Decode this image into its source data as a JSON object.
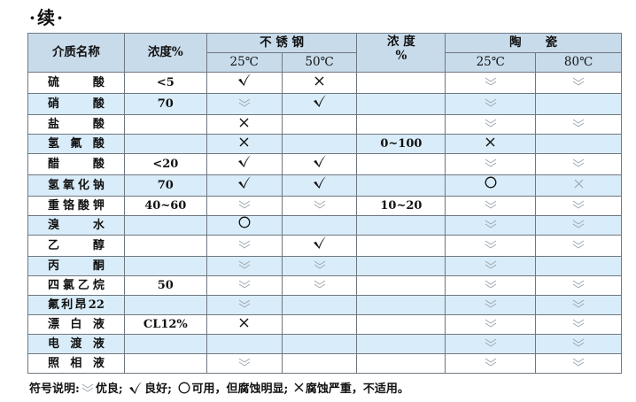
{
  "title": "·续·",
  "header": {
    "medium": "介质名称",
    "concentration": "浓度%",
    "steel": "不 锈 钢",
    "steel_25": "25℃",
    "steel_50": "50℃",
    "conc2_line1": "浓 度",
    "conc2_line2": "%",
    "ceramic": "陶　　瓷",
    "ceramic_25": "25℃",
    "ceramic_80": "80℃"
  },
  "rows": [
    {
      "name": "硫 酸",
      "conc": "<5",
      "s25": "good",
      "s50": "poor",
      "conc2": "",
      "c25": "excellent",
      "c80": "excellent"
    },
    {
      "name": "硝 酸",
      "conc": "70",
      "s25": "excellent",
      "s50": "good",
      "conc2": "",
      "c25": "excellent",
      "c80": ""
    },
    {
      "name": "盐 酸",
      "conc": "",
      "s25": "poor",
      "s50": "",
      "conc2": "",
      "c25": "excellent",
      "c80": "excellent"
    },
    {
      "name": "氢 氟 酸",
      "conc": "",
      "s25": "poor",
      "s50": "",
      "conc2": "0~100",
      "c25": "poor",
      "c80": ""
    },
    {
      "name": "醋 酸",
      "conc": "<20",
      "s25": "good",
      "s50": "good",
      "conc2": "",
      "c25": "excellent",
      "c80": "excellent"
    },
    {
      "name": "氢氧化钠",
      "conc": "70",
      "s25": "good",
      "s50": "good",
      "conc2": "",
      "c25": "fair",
      "c80": "poor-light"
    },
    {
      "name": "重铬酸钾",
      "conc": "40~60",
      "s25": "excellent",
      "s50": "excellent",
      "conc2": "10~20",
      "c25": "excellent",
      "c80": "excellent"
    },
    {
      "name": "溴 水",
      "conc": "",
      "s25": "fair",
      "s50": "",
      "conc2": "",
      "c25": "excellent",
      "c80": "excellent"
    },
    {
      "name": "乙 醇",
      "conc": "",
      "s25": "excellent",
      "s50": "good",
      "conc2": "",
      "c25": "excellent",
      "c80": "excellent"
    },
    {
      "name": "丙 酮",
      "conc": "",
      "s25": "excellent",
      "s50": "excellent",
      "conc2": "",
      "c25": "excellent",
      "c80": ""
    },
    {
      "name": "四氯乙烷",
      "conc": "50",
      "s25": "excellent",
      "s50": "excellent",
      "conc2": "",
      "c25": "excellent",
      "c80": "excellent"
    },
    {
      "name": "氟利昂22",
      "conc": "",
      "s25": "excellent",
      "s50": "",
      "conc2": "",
      "c25": "excellent",
      "c80": "excellent"
    },
    {
      "name": "漂 白 液",
      "conc": "CL12%",
      "s25": "poor",
      "s50": "",
      "conc2": "",
      "c25": "excellent",
      "c80": "excellent"
    },
    {
      "name": "电 渡 液",
      "conc": "",
      "s25": "",
      "s50": "",
      "conc2": "",
      "c25": "excellent",
      "c80": "excellent"
    },
    {
      "name": "照 相 液",
      "conc": "",
      "s25": "excellent",
      "s50": "",
      "conc2": "",
      "c25": "excellent",
      "c80": "excellent"
    }
  ],
  "legend": {
    "prefix": "符号说明:",
    "excellent": "优良;",
    "good": "良好;",
    "fair": "可用，但腐蚀明显;",
    "poor": "腐蚀严重，不适用。"
  },
  "colors": {
    "header_bg": "#c8dbeb",
    "alt_row_bg": "#d9ecf9",
    "excellent_symbol": "#9aa3ab"
  }
}
